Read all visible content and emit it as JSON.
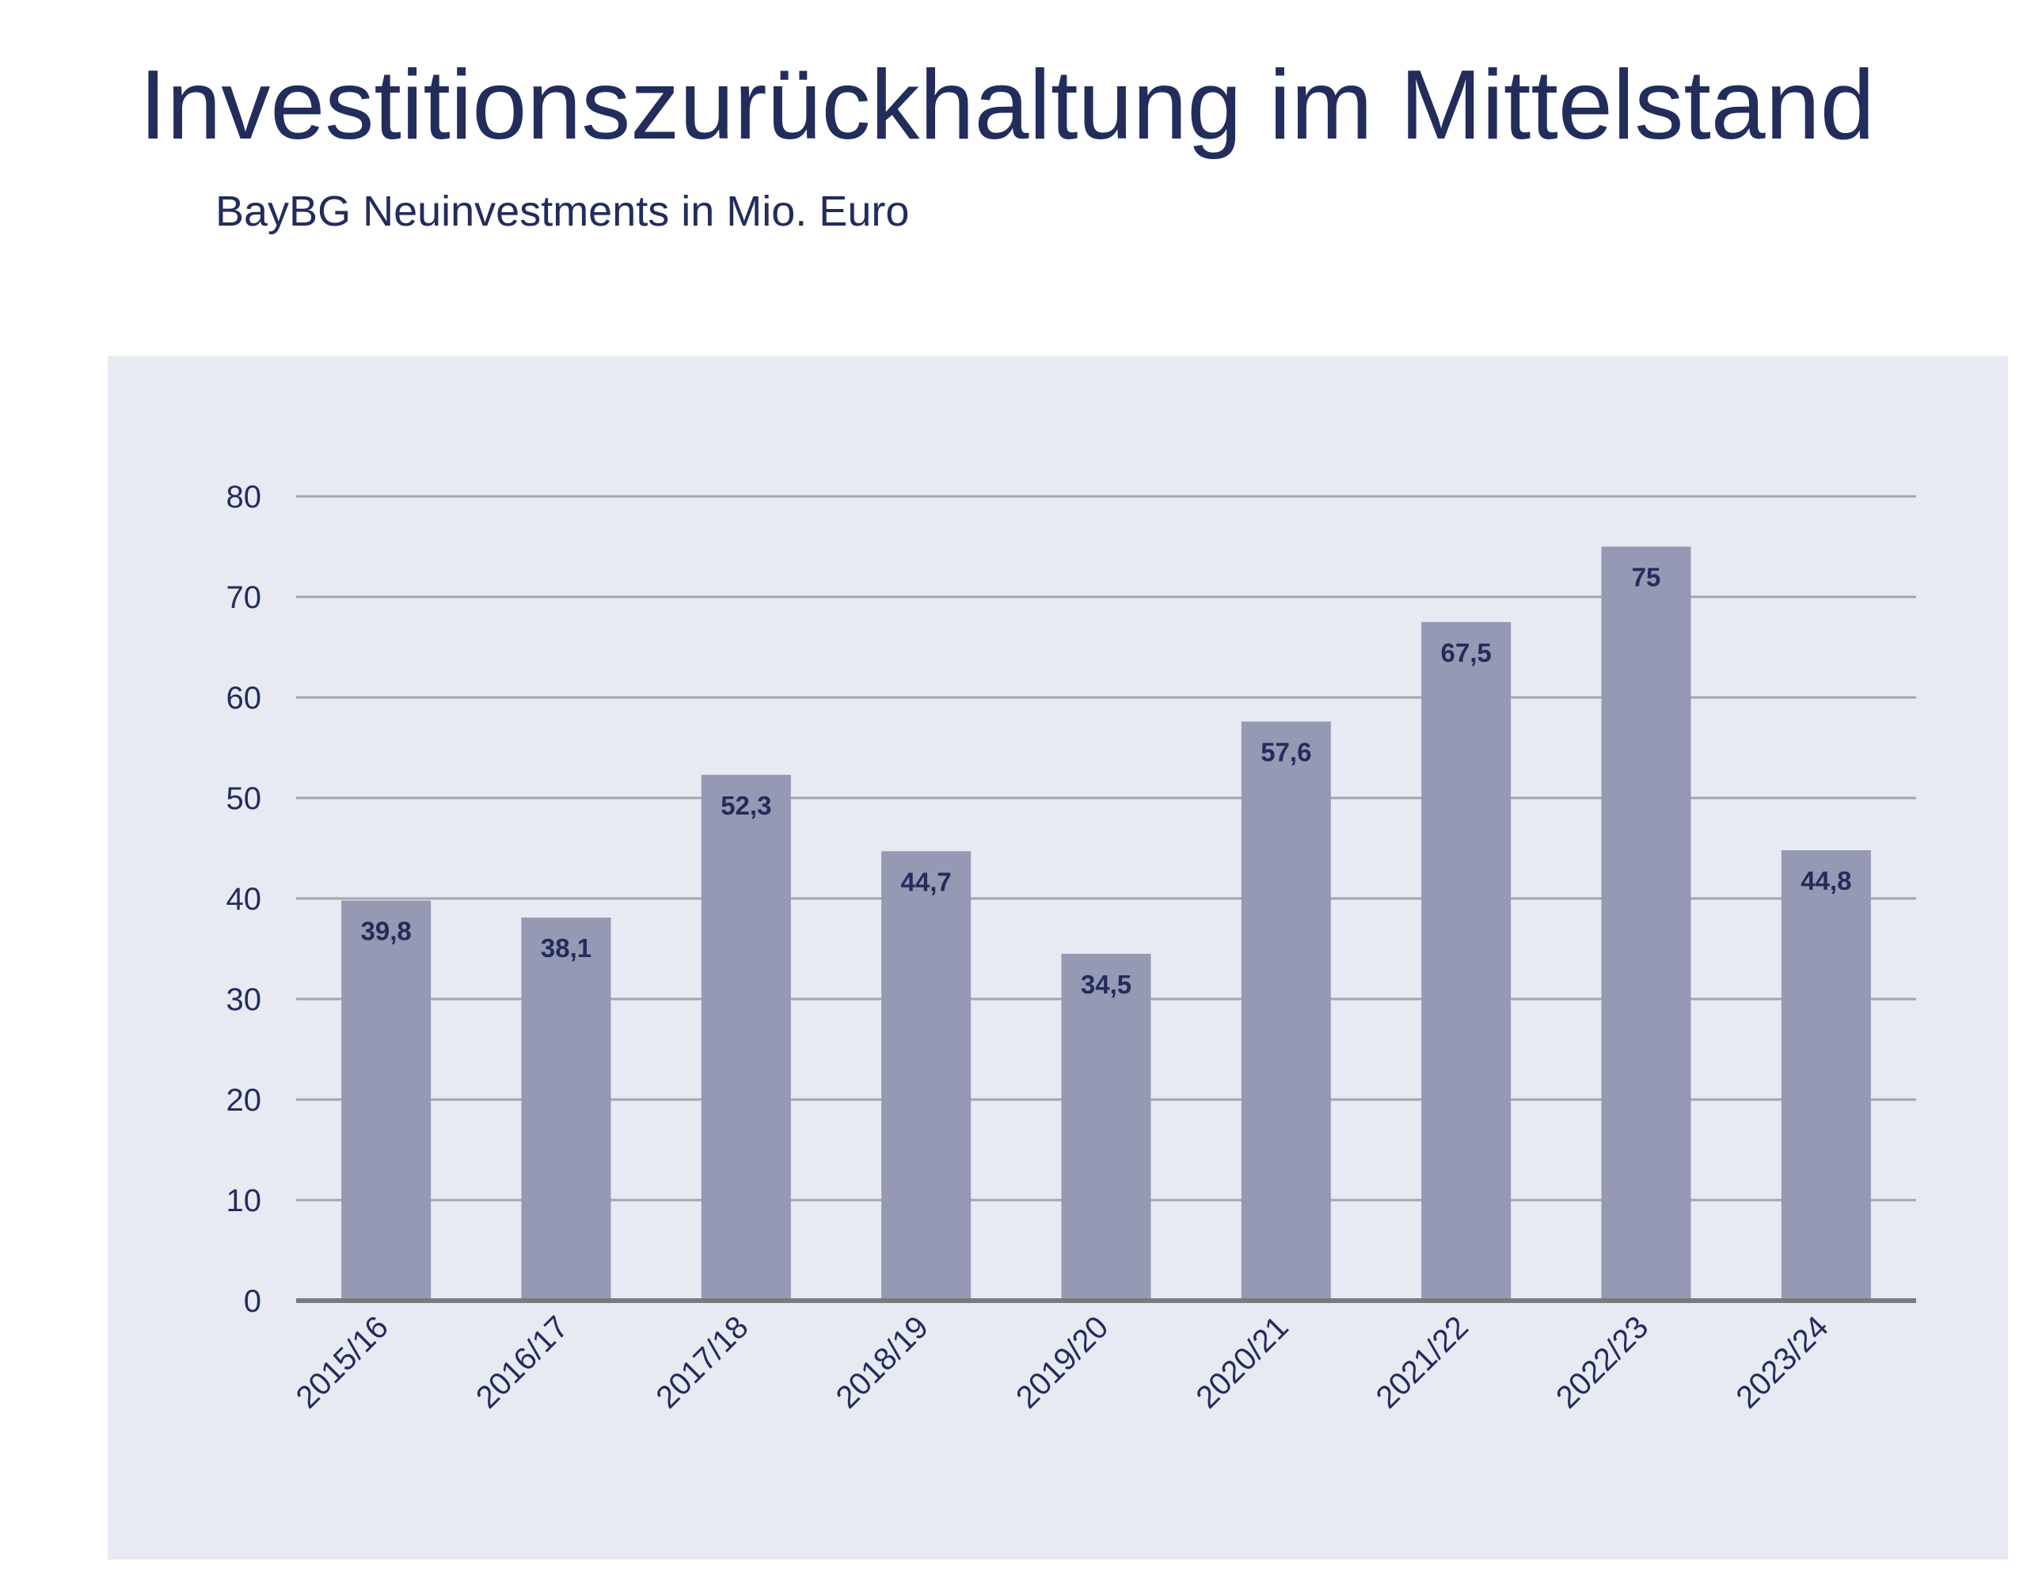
{
  "chart_data": {
    "type": "bar",
    "title": "Investitionszurückhaltung im Mittelstand",
    "subtitle": "BayBG Neuinvestments in Mio. Euro",
    "categories": [
      "2015/16",
      "2016/17",
      "2017/18",
      "2018/19",
      "2019/20",
      "2020/21",
      "2021/22",
      "2022/23",
      "2023/24"
    ],
    "values": [
      39.8,
      38.1,
      52.3,
      44.7,
      34.5,
      57.6,
      67.5,
      75,
      44.8
    ],
    "data_labels": [
      "39,8",
      "38,1",
      "52,3",
      "44,7",
      "34,5",
      "57,6",
      "67,5",
      "75",
      "44,8"
    ],
    "ylim": [
      0,
      80
    ],
    "yticks": [
      0,
      10,
      20,
      30,
      40,
      50,
      60,
      70,
      80
    ],
    "grid": true,
    "legend": "none",
    "xlabel": "",
    "ylabel": ""
  },
  "colors": {
    "title": "#222d5c",
    "plot_background": "#e8eaf3",
    "bar": "#9599b3",
    "gridline": "#a3a6ae",
    "axis": "#7a7a7e"
  }
}
